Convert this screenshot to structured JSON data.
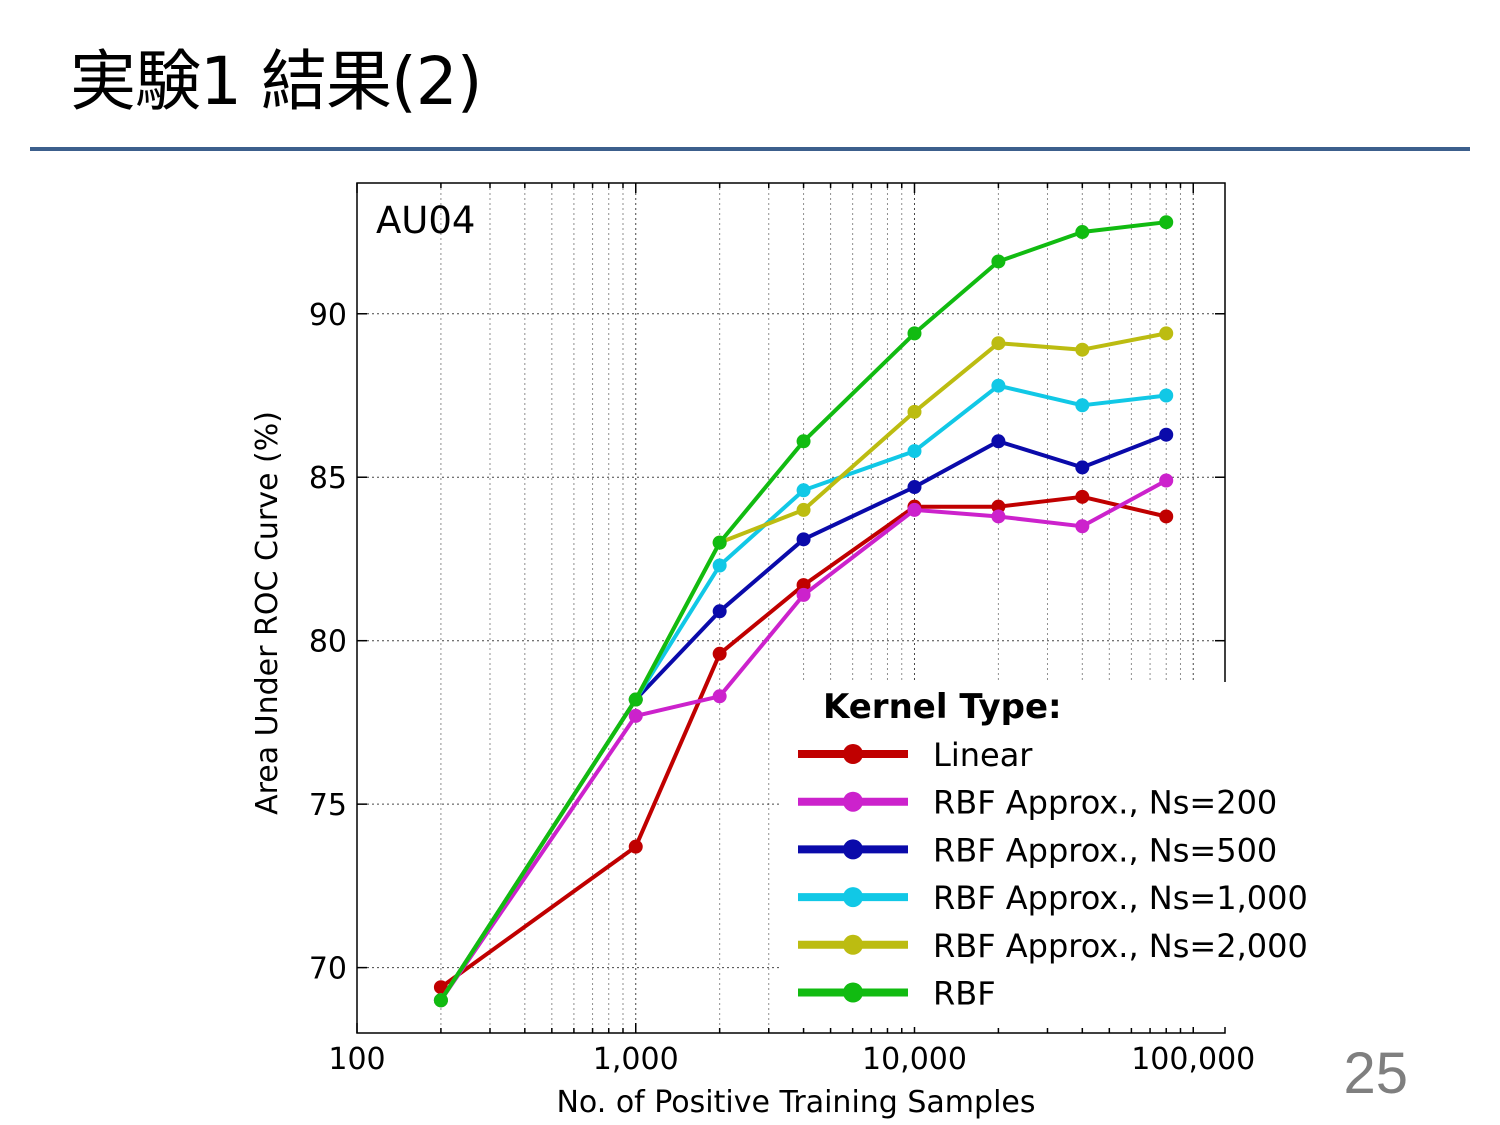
{
  "slide": {
    "title": "実験1 結果(2)",
    "page_number": "25"
  },
  "colors": {
    "title_rule": "#3c5f8c",
    "page_number": "#7f7f7f"
  },
  "chart_data": {
    "type": "line",
    "annotation": "AU04",
    "xlabel": "No. of Positive Training Samples",
    "ylabel": "Area Under ROC Curve (%)",
    "x_scale": "log",
    "xlim": [
      100,
      130000
    ],
    "ylim": [
      68,
      94
    ],
    "x_ticks": [
      100,
      1000,
      10000,
      100000
    ],
    "x_tick_labels": [
      "100",
      "1,000",
      "10,000",
      "100,000"
    ],
    "y_ticks": [
      70,
      75,
      80,
      85,
      90
    ],
    "y_tick_labels": [
      "70",
      "75",
      "80",
      "85",
      "90"
    ],
    "grid": true,
    "legend_title": "Kernel Type:",
    "legend_position": "bottom-right",
    "x": [
      200,
      1000,
      2000,
      4000,
      10000,
      20000,
      40000,
      80000
    ],
    "series": [
      {
        "name": "Linear",
        "color": "#c00000",
        "values": [
          69.4,
          73.7,
          79.6,
          81.7,
          84.1,
          84.1,
          84.4,
          83.8
        ]
      },
      {
        "name": "RBF Approx., Ns=200",
        "color": "#cc22cc",
        "values": [
          69.0,
          77.7,
          78.3,
          81.4,
          84.0,
          83.8,
          83.5,
          84.9
        ]
      },
      {
        "name": "RBF Approx., Ns=500",
        "color": "#0a0aaa",
        "values": [
          69.0,
          78.2,
          80.9,
          83.1,
          84.7,
          86.1,
          85.3,
          86.3
        ]
      },
      {
        "name": "RBF Approx., Ns=1,000",
        "color": "#11c8e6",
        "values": [
          69.0,
          78.2,
          82.3,
          84.6,
          85.8,
          87.8,
          87.2,
          87.5
        ]
      },
      {
        "name": "RBF Approx., Ns=2,000",
        "color": "#bcbc11",
        "values": [
          69.0,
          78.2,
          83.0,
          84.0,
          87.0,
          89.1,
          88.9,
          89.4
        ]
      },
      {
        "name": "RBF",
        "color": "#11bb11",
        "values": [
          69.0,
          78.2,
          83.0,
          86.1,
          89.4,
          91.6,
          92.5,
          92.8
        ]
      }
    ]
  }
}
